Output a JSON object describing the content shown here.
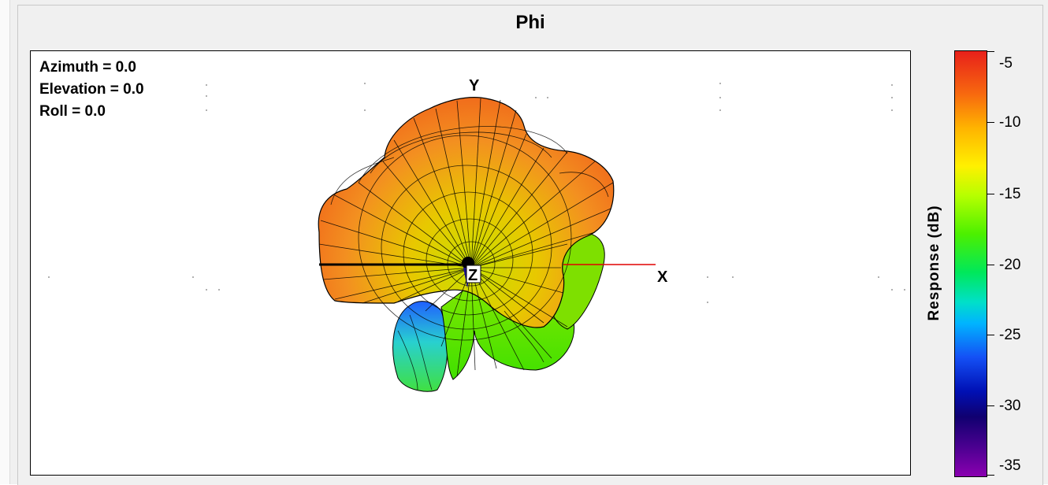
{
  "window": {
    "title": "Phi"
  },
  "view": {
    "azimuth": "Azimuth = 0.0",
    "elevation": "Elevation = 0.0",
    "roll": "Roll = 0.0"
  },
  "axes": {
    "x_label": "X",
    "y_label": "Y",
    "z_label": "Z",
    "x_axis_color": "#e00000"
  },
  "colorbar": {
    "title": "Response  (dB)",
    "ticks": [
      "-5",
      "-10",
      "-15",
      "-20",
      "-25",
      "-30",
      "-35"
    ],
    "colormap": "jet"
  },
  "colors": {
    "background": "#f0f0f0",
    "plot_background": "#ffffff",
    "frame": "#000000"
  }
}
